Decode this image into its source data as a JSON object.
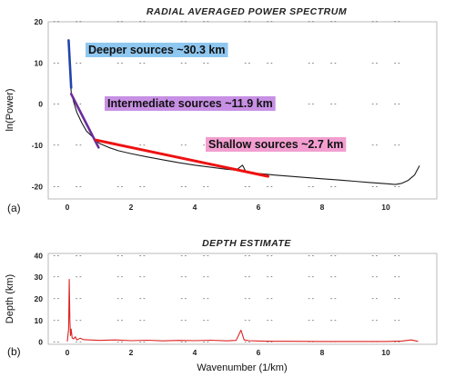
{
  "chart_data": [
    {
      "panel_label": "(a)",
      "type": "line",
      "title": "RADIAL AVERAGED POWER SPECTRUM",
      "xlabel": "",
      "ylabel": "ln(Power)",
      "xlim": [
        -0.6,
        11.6
      ],
      "ylim": [
        -23,
        20
      ],
      "x_ticks": [
        "0",
        "2",
        "4",
        "6",
        "8",
        "10"
      ],
      "y_ticks": [
        "20",
        "10",
        "0",
        "-10",
        "-20"
      ],
      "grid": "dotted",
      "series": [
        {
          "role": "spectrum",
          "color": "#1a1a1a",
          "x": [
            0.05,
            0.08,
            0.12,
            0.2,
            0.3,
            0.45,
            0.6,
            0.8,
            1.0,
            1.3,
            1.6,
            2.0,
            2.5,
            3.0,
            3.5,
            4.0,
            4.5,
            5.0,
            5.3,
            5.5,
            5.6,
            5.7,
            6.0,
            6.5,
            7.0,
            7.5,
            8.0,
            8.5,
            9.0,
            9.5,
            10.0,
            10.3,
            10.5,
            10.7,
            10.9,
            11.05
          ],
          "y": [
            14.5,
            8.0,
            3.0,
            0.5,
            -2.0,
            -4.5,
            -6.5,
            -8.0,
            -9.5,
            -10.5,
            -11.3,
            -12.0,
            -12.8,
            -13.5,
            -14.2,
            -14.8,
            -15.3,
            -15.8,
            -16.0,
            -14.8,
            -16.3,
            -16.5,
            -16.8,
            -17.2,
            -17.5,
            -17.8,
            -18.1,
            -18.4,
            -18.7,
            -19.0,
            -19.3,
            -19.5,
            -19.2,
            -18.5,
            -17.2,
            -15.0
          ]
        },
        {
          "role": "fit",
          "name": "Deeper sources ~30.3 km",
          "color": "#2244aa",
          "x": [
            0.04,
            0.12
          ],
          "y": [
            15.5,
            4.0
          ]
        },
        {
          "role": "fit",
          "name": "Intermediate sources ~11.9 km",
          "color": "#6a2c9c",
          "x": [
            0.12,
            0.98
          ],
          "y": [
            2.5,
            -10.5
          ]
        },
        {
          "role": "fit",
          "name": "Shallow sources ~2.7 km",
          "color": "#ee1111",
          "x": [
            0.9,
            6.3
          ],
          "y": [
            -8.7,
            -17.5
          ]
        }
      ],
      "annotations": [
        {
          "text": "Deeper sources ~30.3 km",
          "bg": "#8ec7f0"
        },
        {
          "text": "Intermediate sources ~11.9 km",
          "bg": "#c890e4"
        },
        {
          "text": "Shallow sources ~2.7 km",
          "bg": "#f29ed0"
        }
      ]
    },
    {
      "panel_label": "(b)",
      "type": "line",
      "title": "DEPTH ESTIMATE",
      "xlabel": "Wavenumber (1/km)",
      "ylabel": "Depth (km)",
      "xlim": [
        -0.6,
        11.6
      ],
      "ylim": [
        -1,
        41
      ],
      "x_ticks": [
        "0",
        "2",
        "4",
        "6",
        "8",
        "10"
      ],
      "y_ticks": [
        "40",
        "30",
        "20",
        "10",
        "0"
      ],
      "grid": "dotted",
      "series": [
        {
          "role": "depth",
          "color": "#dd2222",
          "x": [
            0.0,
            0.04,
            0.06,
            0.08,
            0.1,
            0.12,
            0.15,
            0.2,
            0.25,
            0.3,
            0.4,
            0.5,
            0.7,
            1.0,
            1.5,
            2.0,
            2.5,
            3.0,
            3.5,
            4.0,
            4.5,
            5.0,
            5.3,
            5.45,
            5.55,
            5.7,
            6.0,
            6.5,
            7.0,
            8.0,
            9.0,
            10.0,
            10.5,
            10.8,
            11.0
          ],
          "y": [
            0.5,
            6.0,
            29.0,
            10.0,
            3.0,
            6.0,
            2.0,
            1.5,
            2.5,
            1.0,
            1.8,
            1.2,
            1.0,
            0.8,
            1.0,
            0.7,
            0.9,
            0.6,
            0.8,
            0.7,
            0.9,
            0.6,
            0.8,
            5.5,
            1.0,
            0.7,
            0.5,
            0.4,
            0.4,
            0.3,
            0.3,
            0.3,
            0.5,
            1.0,
            0.4
          ]
        }
      ]
    }
  ]
}
